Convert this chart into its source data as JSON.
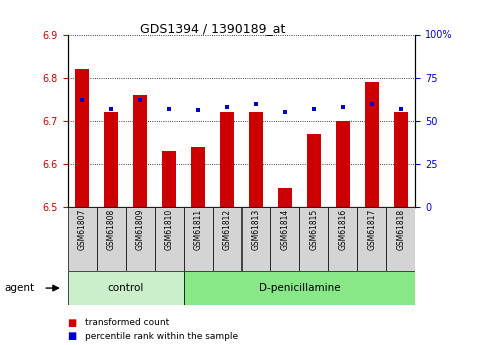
{
  "title": "GDS1394 / 1390189_at",
  "samples": [
    "GSM61807",
    "GSM61808",
    "GSM61809",
    "GSM61810",
    "GSM61811",
    "GSM61812",
    "GSM61813",
    "GSM61814",
    "GSM61815",
    "GSM61816",
    "GSM61817",
    "GSM61818"
  ],
  "red_values": [
    6.82,
    6.72,
    6.76,
    6.63,
    6.64,
    6.72,
    6.72,
    6.545,
    6.67,
    6.7,
    6.79,
    6.72
  ],
  "blue_percentiles": [
    62,
    57,
    62,
    57,
    56,
    58,
    60,
    55,
    57,
    58,
    60,
    57
  ],
  "ymin": 6.5,
  "ymax": 6.9,
  "y2min": 0,
  "y2max": 100,
  "yticks": [
    6.5,
    6.6,
    6.7,
    6.8,
    6.9
  ],
  "y2ticks": [
    0,
    25,
    50,
    75,
    100
  ],
  "y2ticklabels": [
    "0",
    "25",
    "50",
    "75",
    "100%"
  ],
  "bar_color": "#cc0000",
  "dot_color": "#0000cc",
  "grid_color": "#000000",
  "control_samples": 4,
  "control_label": "control",
  "treatment_label": "D-penicillamine",
  "agent_label": "agent",
  "legend_red": "transformed count",
  "legend_blue": "percentile rank within the sample",
  "control_bg": "#ccf0cc",
  "treatment_bg": "#88e888",
  "bar_width": 0.5
}
